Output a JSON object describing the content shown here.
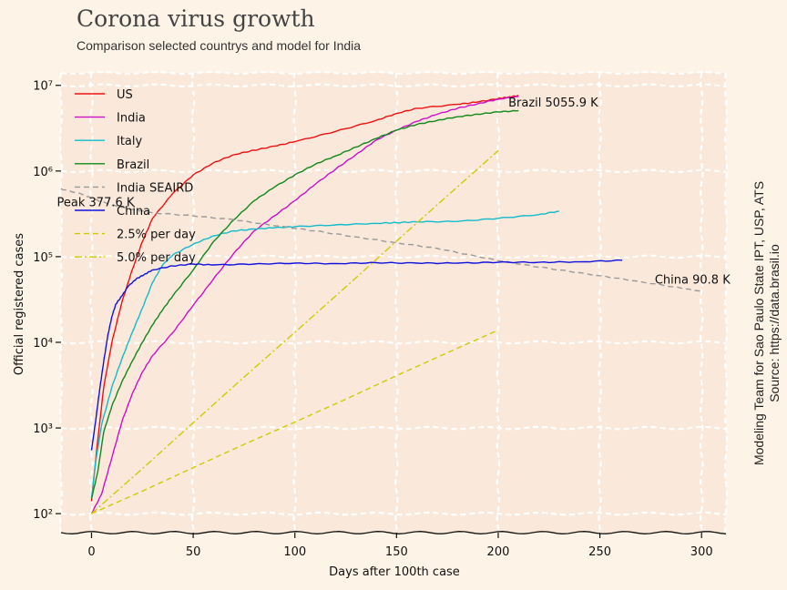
{
  "chart_data": {
    "type": "line",
    "title": "Corona virus growth",
    "subtitle": "Comparison selected countrys and model for India",
    "xlabel": "Days after 100th case",
    "ylabel": "Official registered cases",
    "yscale": "log",
    "xlim": [
      -15,
      312
    ],
    "ylim": [
      60,
      14000000
    ],
    "x_ticks": [
      0,
      50,
      100,
      150,
      200,
      250,
      300
    ],
    "x_tick_labels": [
      "0",
      "50",
      "100",
      "150",
      "200",
      "250",
      "300"
    ],
    "y_ticks": [
      100,
      1000,
      10000,
      100000,
      1000000,
      10000000
    ],
    "y_tick_labels": [
      "10²",
      "10³",
      "10⁴",
      "10⁵",
      "10⁶",
      "10⁷"
    ],
    "grid": true,
    "legend_position": "upper-left",
    "series": [
      {
        "name": "US",
        "color": "#ee1111",
        "dash": "solid",
        "x": [
          0,
          3,
          6,
          10,
          15,
          20,
          25,
          30,
          40,
          50,
          60,
          70,
          80,
          90,
          100,
          120,
          140,
          150,
          160,
          180,
          190,
          200,
          205,
          210
        ],
        "y": [
          140,
          700,
          3000,
          10000,
          30000,
          70000,
          150000,
          280000,
          550000,
          900000,
          1250000,
          1550000,
          1750000,
          1950000,
          2200000,
          2900000,
          3900000,
          4700000,
          5400000,
          6000000,
          6400000,
          7000000,
          7300000,
          7600000
        ]
      },
      {
        "name": "India",
        "color": "#cc11cc",
        "dash": "solid",
        "x": [
          0,
          5,
          10,
          15,
          20,
          25,
          30,
          40,
          50,
          60,
          70,
          80,
          90,
          100,
          110,
          120,
          130,
          140,
          150,
          160,
          170,
          180,
          190,
          200,
          210
        ],
        "y": [
          100,
          170,
          450,
          1200,
          2500,
          4500,
          7000,
          13000,
          27000,
          55000,
          110000,
          200000,
          300000,
          450000,
          700000,
          1050000,
          1550000,
          2300000,
          3000000,
          3800000,
          4600000,
          5400000,
          6100000,
          6900000,
          7400000
        ]
      },
      {
        "name": "Italy",
        "color": "#11bbcc",
        "dash": "solid",
        "x": [
          0,
          2,
          5,
          10,
          15,
          20,
          25,
          30,
          35,
          40,
          50,
          60,
          70,
          80,
          90,
          100,
          120,
          140,
          150,
          160,
          180,
          200,
          220,
          230
        ],
        "y": [
          150,
          400,
          1100,
          3000,
          6500,
          13000,
          25000,
          50000,
          80000,
          105000,
          140000,
          175000,
          200000,
          210000,
          218000,
          224000,
          235000,
          245000,
          250000,
          255000,
          258000,
          280000,
          310000,
          340000
        ]
      },
      {
        "name": "Brazil",
        "color": "#11881a",
        "dash": "solid",
        "x": [
          0,
          3,
          6,
          10,
          15,
          20,
          25,
          30,
          35,
          40,
          50,
          60,
          70,
          80,
          90,
          100,
          110,
          120,
          130,
          140,
          150,
          160,
          170,
          180,
          190,
          200,
          210
        ],
        "y": [
          150,
          300,
          900,
          1800,
          3500,
          6000,
          10000,
          16000,
          24000,
          35000,
          70000,
          150000,
          270000,
          450000,
          650000,
          900000,
          1200000,
          1500000,
          1900000,
          2400000,
          3000000,
          3500000,
          3900000,
          4300000,
          4600000,
          4900000,
          5055900
        ]
      },
      {
        "name": "India SEAIRD",
        "color": "#999999",
        "dash": "dashed",
        "x": [
          -15,
          -5,
          0,
          10,
          20,
          30,
          50,
          70,
          90,
          110,
          130,
          150,
          170,
          190,
          210,
          230,
          250,
          270,
          290,
          300
        ],
        "y": [
          620000,
          540000,
          480000,
          400000,
          355000,
          325000,
          300000,
          270000,
          230000,
          200000,
          170000,
          145000,
          125000,
          100000,
          82000,
          70000,
          60000,
          51000,
          43000,
          39000
        ]
      },
      {
        "name": "China",
        "color": "#1111dd",
        "dash": "solid",
        "x": [
          0,
          2,
          4,
          6,
          8,
          10,
          12,
          15,
          18,
          22,
          26,
          30,
          40,
          50,
          60,
          80,
          100,
          120,
          140,
          160,
          180,
          200,
          220,
          240,
          261
        ],
        "y": [
          550,
          1200,
          2800,
          6000,
          12000,
          20000,
          28000,
          35000,
          45000,
          55000,
          62000,
          70000,
          78000,
          82000,
          80000,
          82000,
          84000,
          83000,
          85000,
          84000,
          84000,
          86000,
          86000,
          87000,
          90800
        ]
      },
      {
        "name": "2.5% per day",
        "color": "#cccc00",
        "dash": "dashed",
        "growth_per_day": 0.025,
        "x": [
          0,
          200
        ],
        "y": [
          100,
          13900
        ]
      },
      {
        "name": "5.0% per day",
        "color": "#cccc00",
        "dash": "dashdot",
        "growth_per_day": 0.05,
        "x": [
          0,
          200
        ],
        "y": [
          100,
          1730000
        ]
      }
    ],
    "annotations": [
      {
        "text": "Brazil 5055.9 K",
        "x": 205,
        "y": 6400000
      },
      {
        "text": "Peak 377.6 K",
        "x": -17,
        "y": 440000
      },
      {
        "text": "China 90.8 K",
        "x": 277,
        "y": 55000
      }
    ],
    "source_lines": [
      "Modeling Team for Sao Paulo State IPT, USP, ATS",
      "Source: https://data.brasil.io"
    ]
  }
}
